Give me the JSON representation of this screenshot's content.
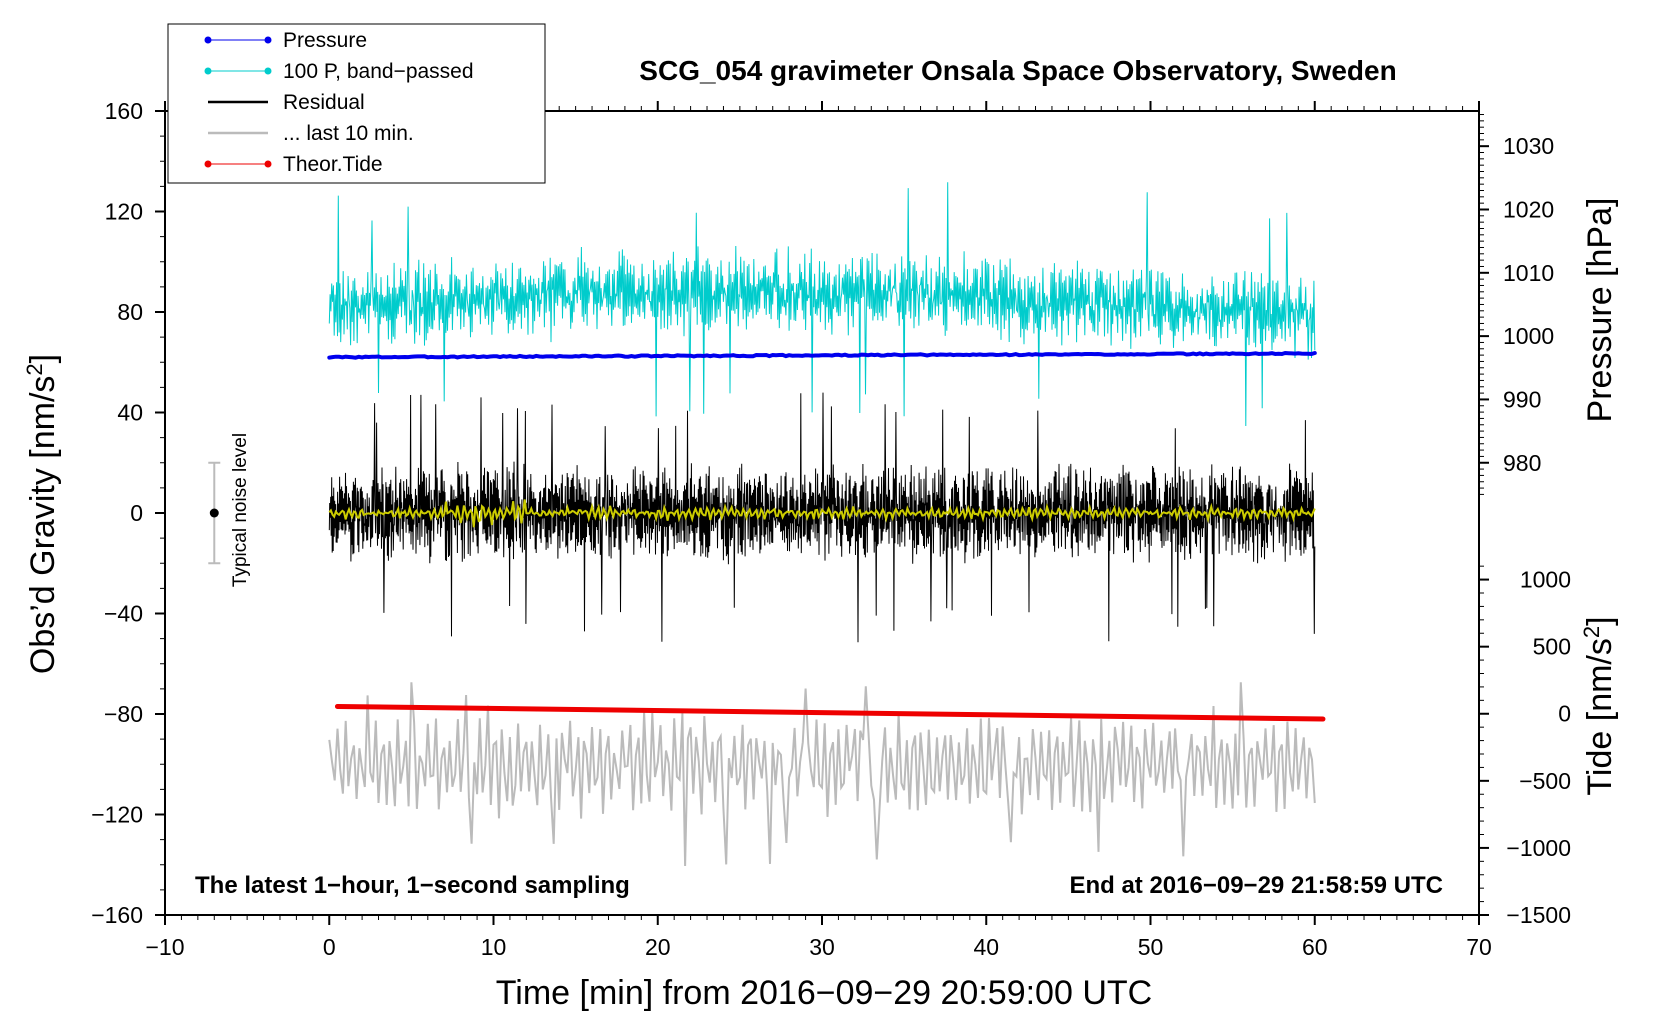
{
  "chart_data": {
    "type": "line",
    "title": "SCG_054 gravimeter Onsala Space Observatory, Sweden",
    "xlabel": "Time [min] from 2016−09−29 20:59:00 UTC",
    "ylabel_left_prefix": "Obs’d Gravity [nm/s",
    "ylabel_left_sup": "2",
    "ylabel_left_suffix": "]",
    "ylabel_right_pressure": "Pressure [hPa]",
    "ylabel_right_tide_prefix": "Tide [nm/s",
    "ylabel_right_tide_sup": "2",
    "ylabel_right_tide_suffix": "]",
    "xlim": [
      -10,
      70
    ],
    "ylim": [
      -160,
      160
    ],
    "x_ticks": [
      -10,
      0,
      10,
      20,
      30,
      40,
      50,
      60,
      70
    ],
    "x_tick_labels": [
      "−10",
      "0",
      "10",
      "20",
      "30",
      "40",
      "50",
      "60",
      "70"
    ],
    "y_ticks": [
      -160,
      -120,
      -80,
      -40,
      0,
      40,
      80,
      120,
      160
    ],
    "y_tick_labels": [
      "−160",
      "−120",
      "−80",
      "−40",
      "0",
      "40",
      "80",
      "120",
      "160"
    ],
    "pressure_axis": {
      "ticks": [
        980,
        990,
        1000,
        1010,
        1020,
        1030
      ],
      "tick_labels": [
        "980",
        "990",
        "1000",
        "1010",
        "1020",
        "1030"
      ],
      "gravity_equiv": {
        "at": [
          980,
          1030
        ],
        "gravity": [
          20,
          146
        ]
      }
    },
    "tide_axis": {
      "ticks": [
        -1500,
        -1000,
        -500,
        0,
        500,
        1000
      ],
      "tick_labels": [
        "−1500",
        "−1000",
        "−500",
        "0",
        "500",
        "1000"
      ],
      "gravity_equiv": {
        "at": [
          -1500,
          1000
        ],
        "gravity": [
          -160,
          -26.5
        ]
      }
    },
    "legend": [
      {
        "label": "Pressure",
        "color": "#0000ee",
        "style": "line-marker"
      },
      {
        "label": "100 P, band−passed",
        "color": "#00cccc",
        "style": "line-marker"
      },
      {
        "label": "Residual",
        "color": "#000000",
        "style": "line"
      },
      {
        "label": "... last 10 min.",
        "color": "#bbbbbb",
        "style": "line"
      },
      {
        "label": "Theor.Tide",
        "color": "#ee0000",
        "style": "line-marker"
      }
    ],
    "annotations": {
      "bottom_left": "The latest 1−hour, 1−second sampling",
      "bottom_right": "End at 2016−09−29 21:58:59 UTC",
      "noise_label": "Typical noise level"
    },
    "noise_bar": {
      "x": -7,
      "center": 0,
      "low": -20,
      "high": 20
    },
    "series": [
      {
        "name": "Pressure",
        "color": "#0000ee",
        "x_range": [
          0,
          60
        ],
        "y_start": 62,
        "y_end": 63.5,
        "noise": 0.5,
        "width": 4
      },
      {
        "name": "100 P, band−passed",
        "color": "#00cccc",
        "x_range": [
          0,
          60
        ],
        "center": 82,
        "amplitude": 14,
        "min": 34,
        "max": 135,
        "width": 1
      },
      {
        "name": "Residual",
        "color": "#000000",
        "x_range": [
          0,
          60
        ],
        "center": 0,
        "amplitude": 16,
        "min": -52,
        "max": 48,
        "width": 1
      },
      {
        "name": "Residual (smoothed)",
        "color": "#cccc00",
        "x_range": [
          0,
          60
        ],
        "center": 0,
        "amplitude": 2.5,
        "width": 2
      },
      {
        "name": "... last 10 min.",
        "color": "#bbbbbb",
        "x_range": [
          0,
          60
        ],
        "center": -100,
        "amplitude": 16,
        "min": -141,
        "max": -65,
        "width": 2
      },
      {
        "name": "Theor.Tide",
        "color": "#ee0000",
        "x_range": [
          0.5,
          60.5
        ],
        "y_start": -77,
        "y_end": -82,
        "width": 5
      }
    ]
  }
}
